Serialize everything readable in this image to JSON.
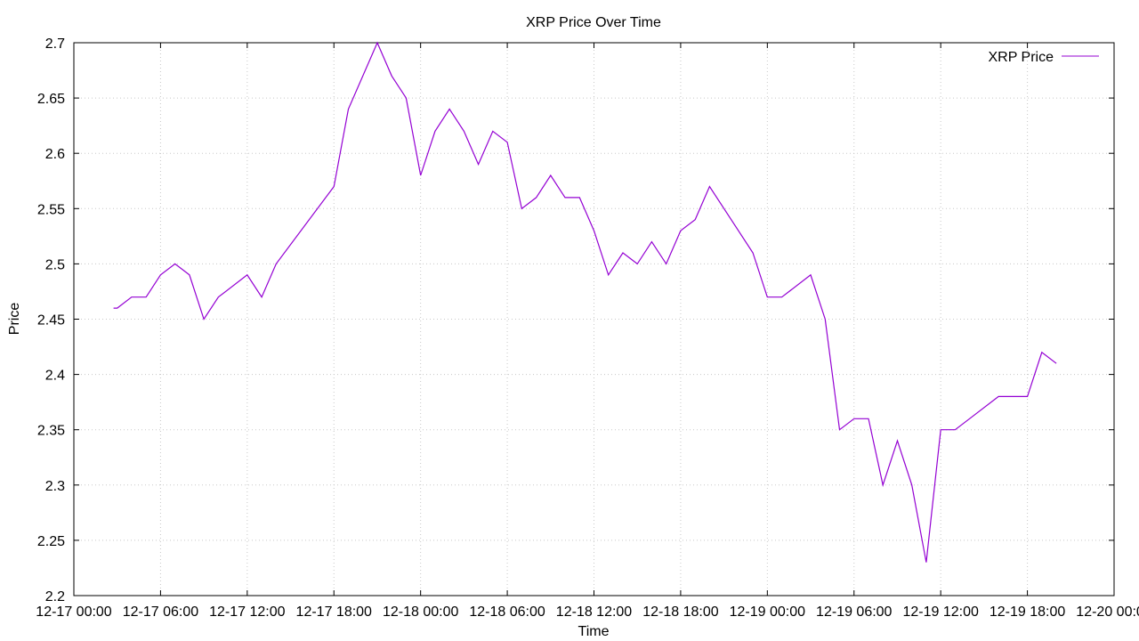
{
  "chart_data": {
    "type": "line",
    "title": "XRP Price Over Time",
    "xlabel": "Time",
    "ylabel": "Price",
    "xlim": [
      "12-17 00:00",
      "12-20 00:00"
    ],
    "ylim": [
      2.2,
      2.7
    ],
    "grid": true,
    "legend_position": "top-right",
    "colors": {
      "series": "#9400d3",
      "grid": "#c8c8c8",
      "axis": "#000000"
    },
    "x_ticks": [
      "12-17 00:00",
      "12-17 06:00",
      "12-17 12:00",
      "12-17 18:00",
      "12-18 00:00",
      "12-18 06:00",
      "12-18 12:00",
      "12-18 18:00",
      "12-19 00:00",
      "12-19 06:00",
      "12-19 12:00",
      "12-19 18:00",
      "12-20 00:00"
    ],
    "y_ticks": [
      "2.2",
      "2.25",
      "2.3",
      "2.35",
      "2.4",
      "2.45",
      "2.5",
      "2.55",
      "2.6",
      "2.65",
      "2.7"
    ],
    "series": [
      {
        "name": "XRP Price",
        "x": [
          "12-17 02:45",
          "12-17 03:00",
          "12-17 04:00",
          "12-17 05:00",
          "12-17 06:00",
          "12-17 07:00",
          "12-17 08:00",
          "12-17 09:00",
          "12-17 10:00",
          "12-17 12:00",
          "12-17 13:00",
          "12-17 14:00",
          "12-17 18:00",
          "12-17 19:00",
          "12-17 21:00",
          "12-17 22:00",
          "12-17 23:00",
          "12-18 00:00",
          "12-18 01:00",
          "12-18 02:00",
          "12-18 03:00",
          "12-18 04:00",
          "12-18 05:00",
          "12-18 06:00",
          "12-18 07:00",
          "12-18 08:00",
          "12-18 09:00",
          "12-18 10:00",
          "12-18 11:00",
          "12-18 12:00",
          "12-18 13:00",
          "12-18 14:00",
          "12-18 15:00",
          "12-18 16:00",
          "12-18 17:00",
          "12-18 18:00",
          "12-18 19:00",
          "12-18 20:00",
          "12-18 23:00",
          "12-19 00:00",
          "12-19 01:00",
          "12-19 03:00",
          "12-19 04:00",
          "12-19 05:00",
          "12-19 06:00",
          "12-19 07:00",
          "12-19 08:00",
          "12-19 09:00",
          "12-19 10:00",
          "12-19 11:00",
          "12-19 12:00",
          "12-19 13:00",
          "12-19 14:00",
          "12-19 16:00",
          "12-19 18:00",
          "12-19 19:00",
          "12-19 20:00"
        ],
        "values": [
          2.46,
          2.46,
          2.47,
          2.47,
          2.49,
          2.5,
          2.49,
          2.45,
          2.47,
          2.49,
          2.47,
          2.5,
          2.57,
          2.64,
          2.7,
          2.67,
          2.65,
          2.58,
          2.62,
          2.64,
          2.62,
          2.59,
          2.62,
          2.61,
          2.55,
          2.56,
          2.58,
          2.56,
          2.56,
          2.53,
          2.49,
          2.51,
          2.5,
          2.52,
          2.5,
          2.53,
          2.54,
          2.57,
          2.51,
          2.47,
          2.47,
          2.49,
          2.45,
          2.35,
          2.36,
          2.36,
          2.3,
          2.34,
          2.3,
          2.23,
          2.35,
          2.35,
          2.36,
          2.38,
          2.38,
          2.42,
          2.41
        ]
      }
    ]
  }
}
